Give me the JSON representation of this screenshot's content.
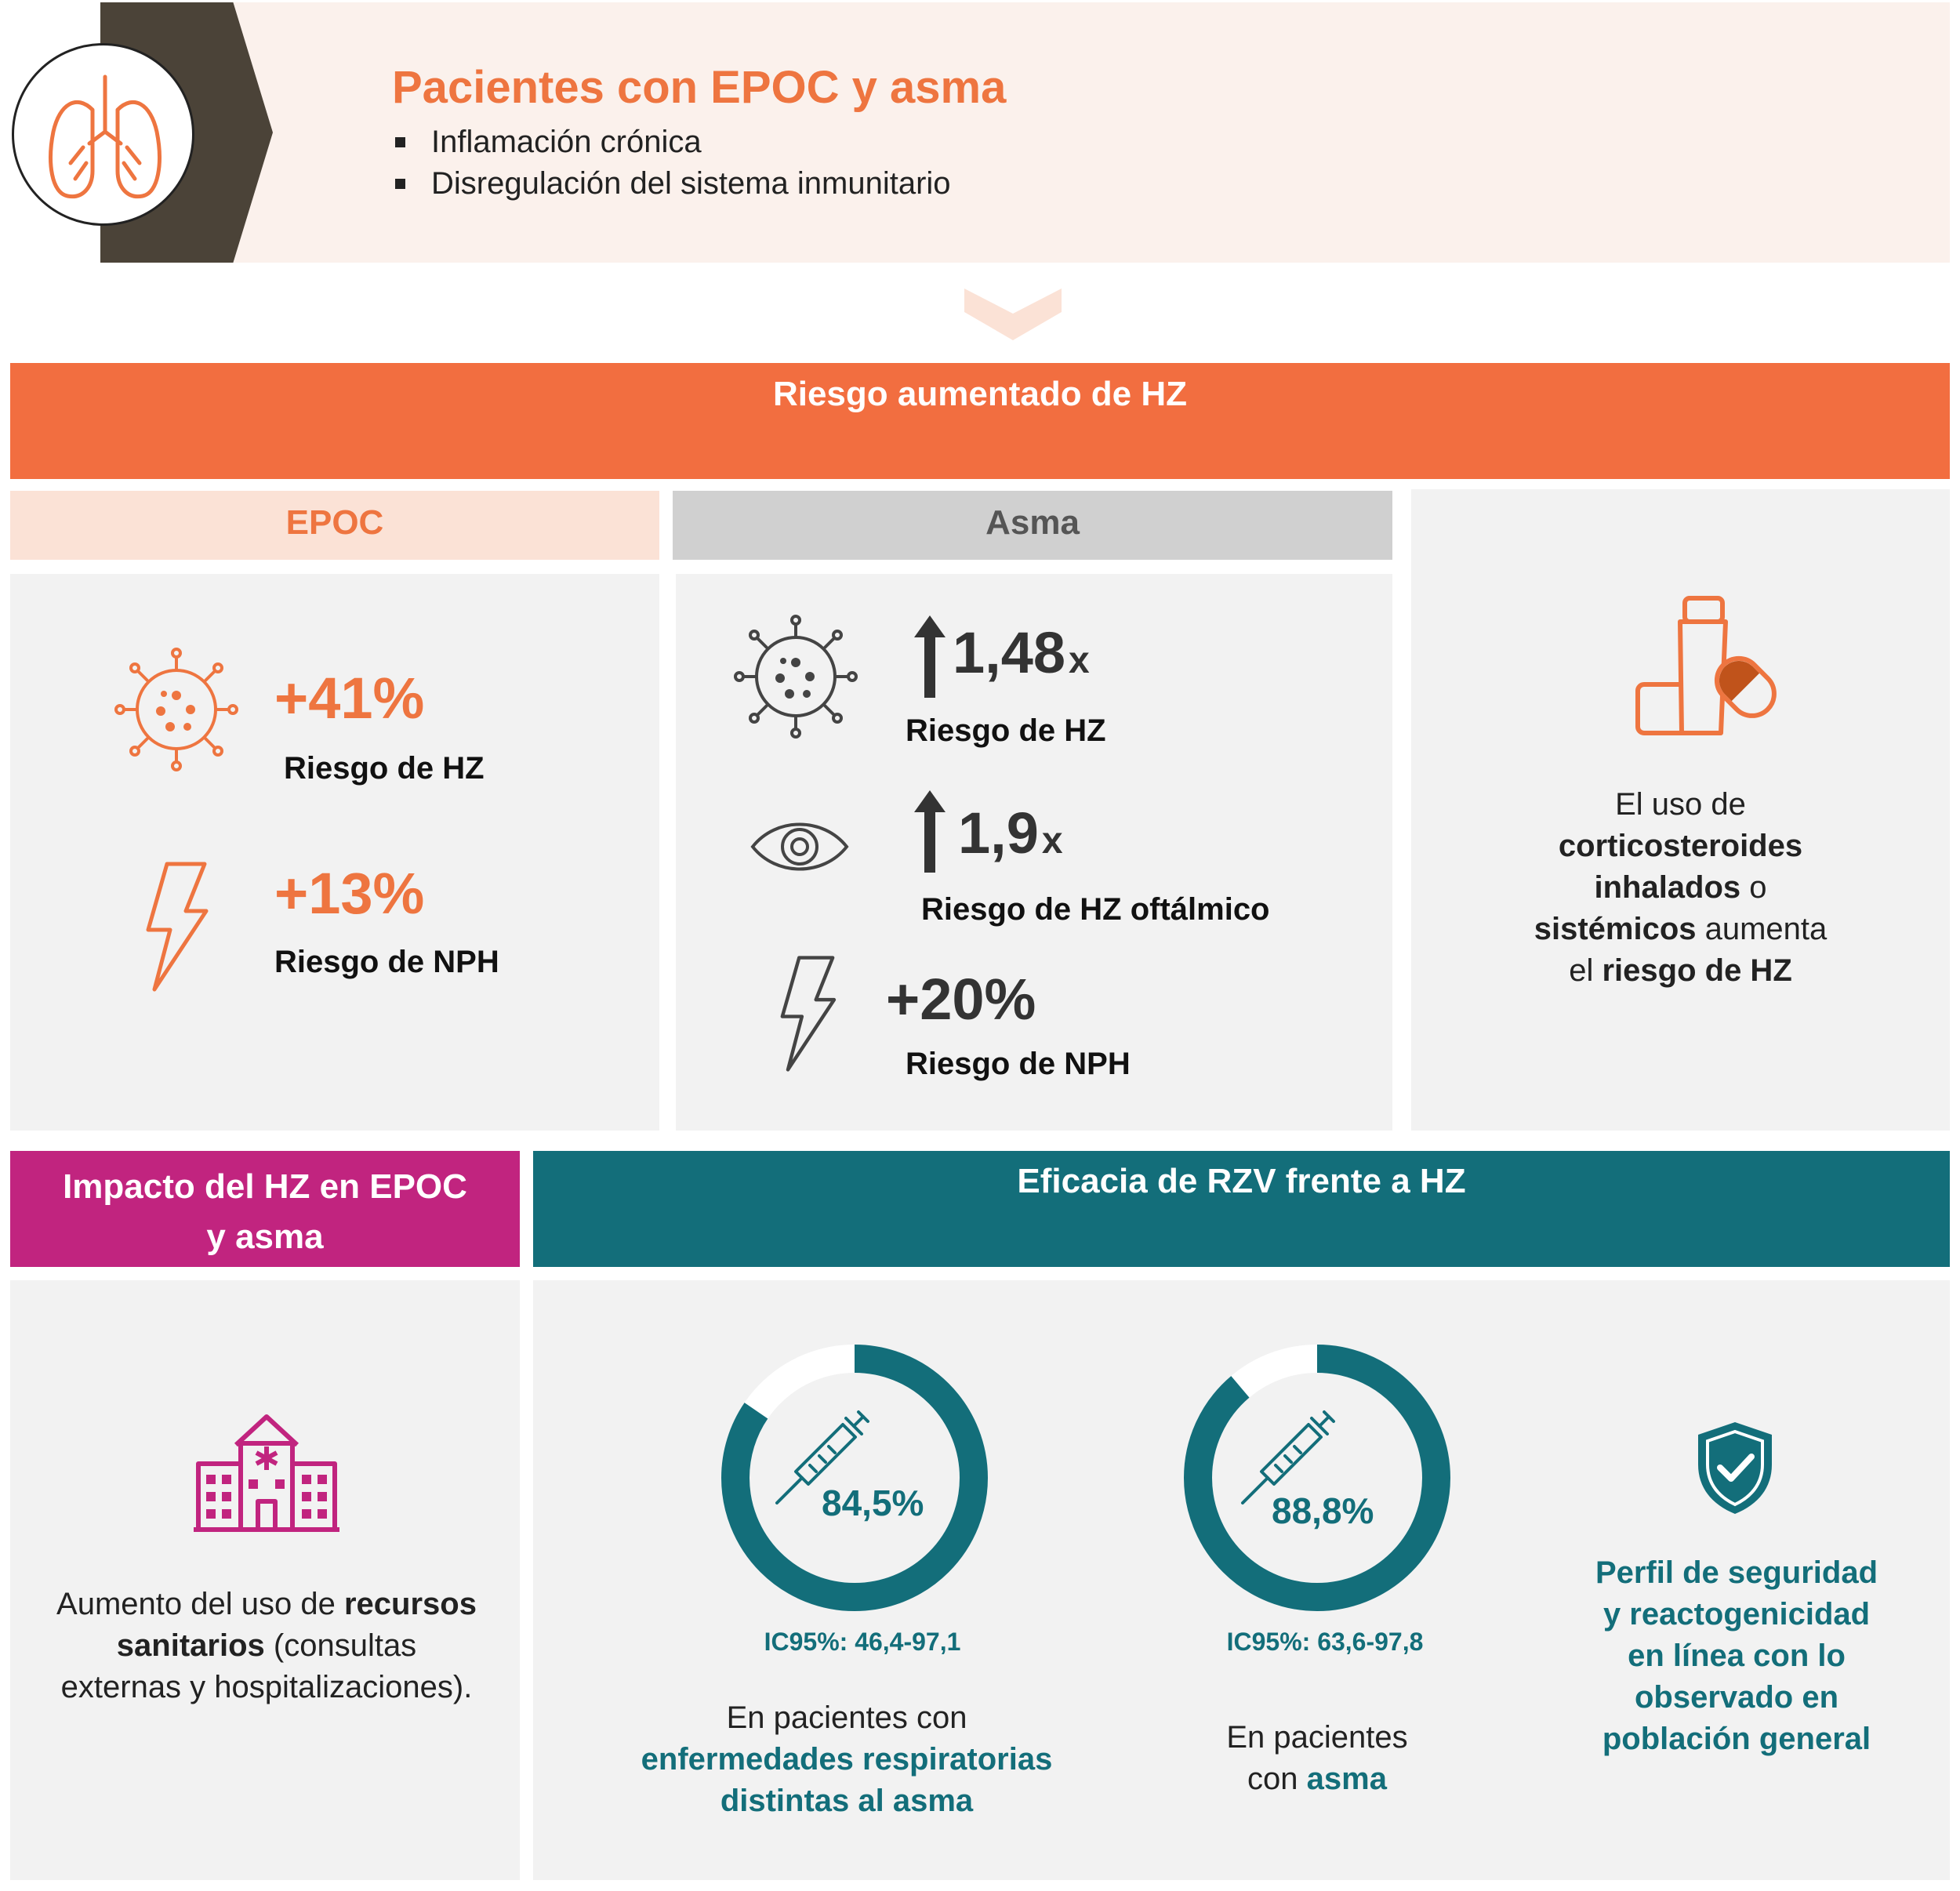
{
  "header": {
    "title": "Pacientes con EPOC y asma",
    "bullets": [
      "Inflamación crónica",
      "Disregulación del sistema inmunitario"
    ]
  },
  "risk": {
    "title": "Riesgo aumentado de HZ",
    "epoc": {
      "label": "EPOC",
      "hz_value": "+41%",
      "hz_label": "Riesgo de HZ",
      "nph_value": "+13%",
      "nph_label": "Riesgo de NPH"
    },
    "asma": {
      "label": "Asma",
      "hz_value": "1,48",
      "hz_unit": "x",
      "hz_label": "Riesgo de HZ",
      "eye_value": "1,9",
      "eye_unit": "x",
      "eye_label": "Riesgo de HZ oftálmico",
      "nph_value": "+20%",
      "nph_label": "Riesgo de NPH"
    },
    "corticosteroids": {
      "t1": "El uso de",
      "t2": "corticosteroides",
      "t3": "inhalados",
      "t4": " o",
      "t5": "sistémicos",
      "t6": " aumenta",
      "t7": "el ",
      "t8": "riesgo de HZ"
    }
  },
  "impact": {
    "title_line1": "Impacto del HZ en EPOC",
    "title_line2": "y asma",
    "t1": "Aumento del uso de ",
    "t2": "recursos",
    "t3": "sanitarios",
    "t4": " (consultas",
    "t5": "externas y hospitalizaciones)."
  },
  "efficacy": {
    "title": "Eficacia de RZV frente a HZ",
    "donuts": [
      {
        "value": 84.5,
        "pct_label": "84,5%",
        "ci": "IC95%: 46,4-97,1",
        "d1": "En pacientes con",
        "d2": "enfermedades respiratorias",
        "d3": "distintas al asma"
      },
      {
        "value": 88.8,
        "pct_label": "88,8%",
        "ci": "IC95%: 63,6-97,8",
        "d1": "En pacientes",
        "d2": "con ",
        "d3": "asma"
      }
    ],
    "safety": [
      "Perfil de seguridad",
      "y reactogenicidad",
      "en línea con lo",
      "observado en",
      "población general"
    ]
  },
  "colors": {
    "orange": "#ee7540",
    "band_orange": "#f26e40",
    "magenta": "#c1247f",
    "teal": "#136e7a",
    "dark": "#4b4338"
  },
  "icons": [
    "lungs-icon",
    "virus-icon",
    "lightning-icon",
    "eye-icon",
    "arrow-up-icon",
    "inhaler-icon",
    "pill-icon",
    "hospital-icon",
    "syringe-icon",
    "shield-check-icon",
    "chevron-down-icon"
  ]
}
